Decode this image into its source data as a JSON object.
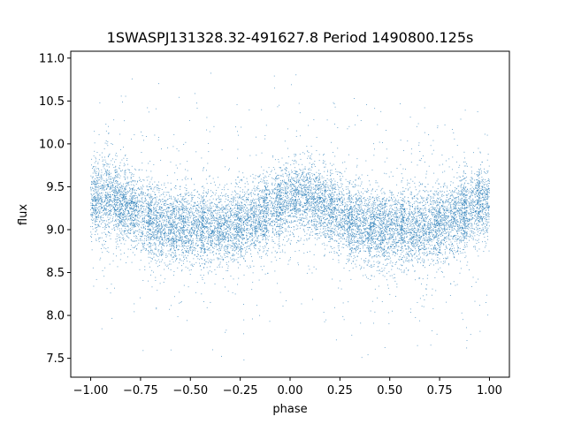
{
  "chart_data": {
    "type": "scatter",
    "title": "1SWASPJ131328.32-491627.8 Period 1490800.125s",
    "xlabel": "phase",
    "ylabel": "flux",
    "xlim": [
      -1.1,
      1.1
    ],
    "ylim": [
      7.28,
      11.08
    ],
    "xticks": [
      -1.0,
      -0.75,
      -0.5,
      -0.25,
      0.0,
      0.25,
      0.5,
      0.75,
      1.0
    ],
    "xtick_labels": [
      "−1.00",
      "−0.75",
      "−0.50",
      "−0.25",
      "0.00",
      "0.25",
      "0.50",
      "0.75",
      "1.00"
    ],
    "yticks": [
      7.5,
      8.0,
      8.5,
      9.0,
      9.5,
      10.0,
      10.5,
      11.0
    ],
    "ytick_labels": [
      "7.5",
      "8.0",
      "8.5",
      "9.0",
      "9.5",
      "10.0",
      "10.5",
      "11.0"
    ],
    "grid": false,
    "legend": "none",
    "marker_color": "#1f77b4",
    "series": [
      {
        "phase_range": [
          -1.0,
          1.0
        ],
        "flux_range": [
          7.45,
          10.9
        ],
        "baseline_flux": 9.15,
        "dense_band_flux": [
          8.6,
          9.8
        ],
        "maxima_phase": [
          -0.95,
          0.05
        ],
        "minima_phase": [
          -0.4,
          0.6
        ],
        "note_points": "dense scatter of several thousand points (phase-folded light curve)"
      }
    ]
  }
}
